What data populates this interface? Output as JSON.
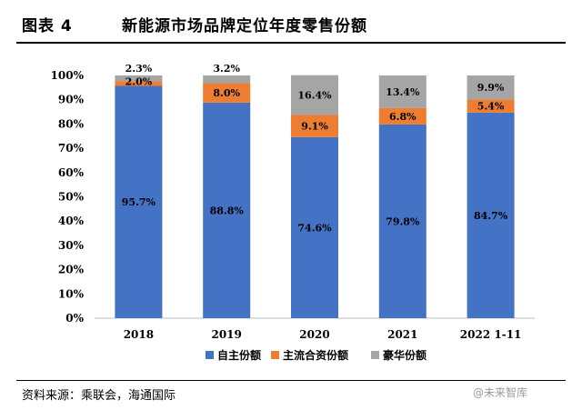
{
  "header": {
    "figure_label": "图表 4",
    "title": "新能源市场品牌定位年度零售份额"
  },
  "footer": {
    "source": "资料来源：乘联会，海通国际",
    "watermark": "@未来智库"
  },
  "colors": {
    "self_brand": "#4472C4",
    "mainstream_jv": "#ED7D31",
    "luxury": "#A5A5A5"
  },
  "chart_data": {
    "type": "bar",
    "stacked": true,
    "categories": [
      "2018",
      "2019",
      "2020",
      "2021",
      "2022 1-11"
    ],
    "series": [
      {
        "name": "自主份额",
        "values": [
          95.7,
          88.8,
          74.6,
          79.8,
          84.7
        ],
        "labels": [
          "95.7%",
          "88.8%",
          "74.6%",
          "79.8%",
          "84.7%"
        ]
      },
      {
        "name": "主流合资份额",
        "values": [
          2.0,
          8.0,
          9.1,
          6.8,
          5.4
        ],
        "labels": [
          "2.0%",
          "8.0%",
          "9.1%",
          "6.8%",
          "5.4%"
        ]
      },
      {
        "name": "豪华份额",
        "values": [
          2.3,
          3.2,
          16.4,
          13.4,
          9.9
        ],
        "labels": [
          "2.3%",
          "3.2%",
          "16.4%",
          "13.4%",
          "9.9%"
        ]
      }
    ],
    "ylim": [
      0,
      100
    ],
    "yticks": [
      "0%",
      "10%",
      "20%",
      "30%",
      "40%",
      "50%",
      "60%",
      "70%",
      "80%",
      "90%",
      "100%"
    ],
    "grid": false,
    "legend": "bottom"
  }
}
